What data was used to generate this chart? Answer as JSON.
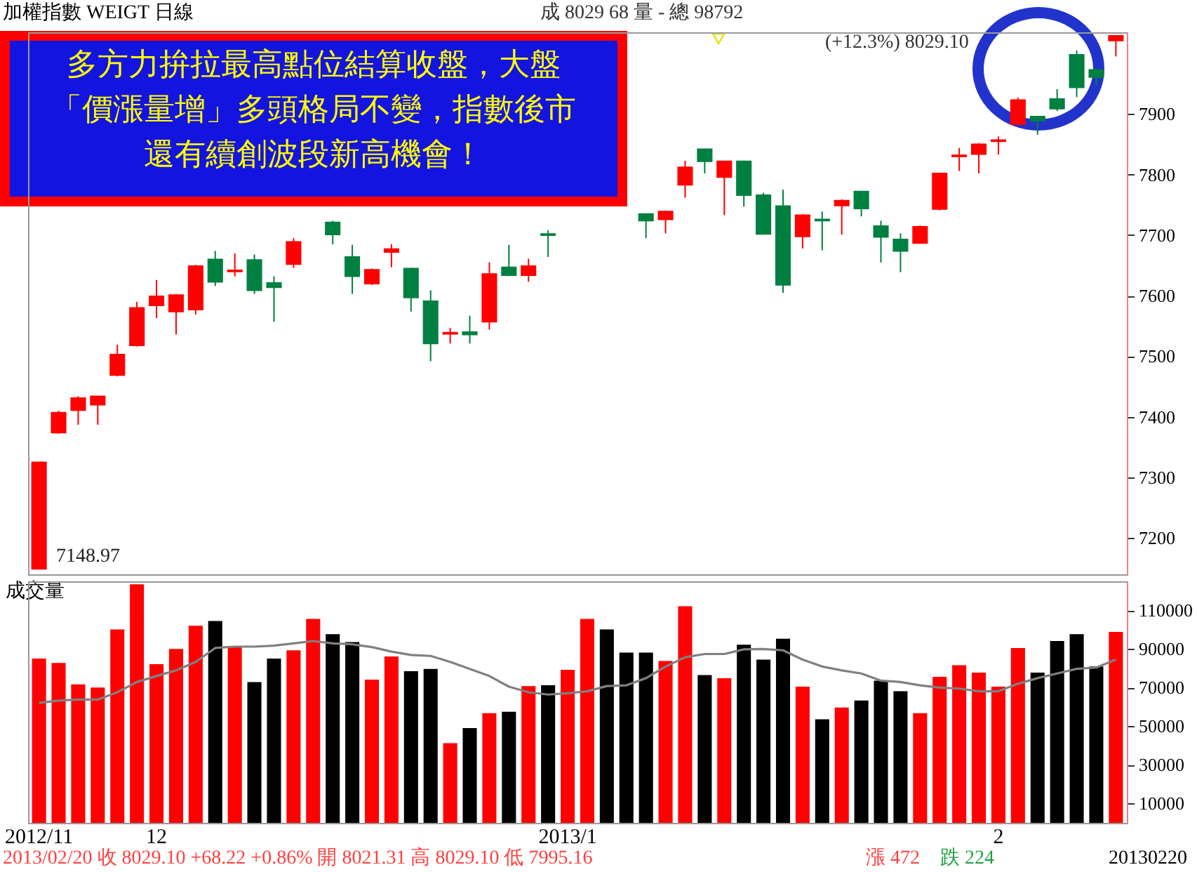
{
  "chart_data": [
    {
      "type": "candlestick",
      "title": "加權指數 WEIGT 日線",
      "annotations": [
        "成 8029 68 量 - 總 98792",
        "(+12.3%) 8029.10",
        "多方力拚拉最高點位結算收盤，大盤",
        "「價漲量增」多頭格局不變，指數後市",
        "還有續創波段新高機會！",
        "7148.97"
      ],
      "categories": [
        "2012/11",
        null,
        null,
        null,
        null,
        null,
        "12",
        null,
        null,
        null,
        null,
        null,
        null,
        null,
        null,
        null,
        null,
        null,
        null,
        null,
        null,
        null,
        null,
        null,
        null,
        null,
        null,
        "2013/1",
        null,
        null,
        null,
        null,
        null,
        null,
        null,
        null,
        null,
        null,
        null,
        null,
        null,
        null,
        null,
        null,
        null,
        null,
        null,
        null,
        null,
        "2",
        null,
        null,
        null,
        null,
        null,
        null
      ],
      "ohlc": [
        [
          7149,
          7325,
          7148.97,
          7325
        ],
        [
          7374,
          7410,
          7372,
          7407
        ],
        [
          7411,
          7434,
          7387,
          7431
        ],
        [
          7420,
          7434,
          7387,
          7434
        ],
        [
          7469,
          7519,
          7467,
          7503
        ],
        [
          7518,
          7590,
          7516,
          7580
        ],
        [
          7584,
          7626,
          7563,
          7599
        ],
        [
          7574,
          7603,
          7536,
          7601
        ],
        [
          7577,
          7651,
          7569,
          7649
        ],
        [
          7660,
          7674,
          7616,
          7623
        ],
        [
          7640,
          7670,
          7632,
          7642
        ],
        [
          7659,
          7668,
          7603,
          7609
        ],
        [
          7621,
          7632,
          7557,
          7614
        ],
        [
          7652,
          7695,
          7646,
          7689
        ],
        null,
        [
          7721,
          7724,
          7685,
          7701
        ],
        [
          7664,
          7684,
          7603,
          7632
        ],
        [
          7620,
          7645,
          7618,
          7643
        ],
        [
          7672,
          7685,
          7647,
          7677
        ],
        [
          7645,
          7646,
          7574,
          7597
        ],
        [
          7591,
          7609,
          7492,
          7521
        ],
        [
          7537,
          7547,
          7521,
          7539
        ],
        [
          7540,
          7567,
          7521,
          7536
        ],
        [
          7557,
          7655,
          7544,
          7636
        ],
        [
          7647,
          7684,
          7633,
          7634
        ],
        [
          7634,
          7661,
          7623,
          7649
        ],
        [
          7702,
          7708,
          7664,
          7700
        ],
        null,
        null,
        null,
        null,
        [
          7735,
          7735,
          7695,
          7724
        ],
        [
          7726,
          7739,
          7703,
          7739
        ],
        [
          7783,
          7823,
          7762,
          7812
        ],
        [
          7842,
          7843,
          7802,
          7822
        ],
        [
          7796,
          7822,
          7733,
          7822
        ],
        [
          7822,
          7823,
          7747,
          7766
        ],
        [
          7766,
          7770,
          7702,
          7702
        ],
        [
          7748,
          7775,
          7605,
          7618
        ],
        [
          7698,
          7735,
          7678,
          7733
        ],
        [
          7726,
          7739,
          7675,
          7724
        ],
        [
          7749,
          7759,
          7701,
          7757
        ],
        [
          7772,
          7773,
          7731,
          7744
        ],
        [
          7715,
          7724,
          7655,
          7697
        ],
        [
          7693,
          7703,
          7639,
          7674
        ],
        [
          7687,
          7716,
          7686,
          7714
        ],
        [
          7743,
          7802,
          7741,
          7802
        ],
        [
          7830,
          7844,
          7806,
          7832
        ],
        [
          7834,
          7852,
          7802,
          7850
        ],
        [
          7855,
          7863,
          7833,
          7857
        ],
        [
          7883,
          7927,
          7882,
          7923
        ],
        [
          7896,
          7897,
          7866,
          7889
        ],
        [
          7925,
          7941,
          7905,
          7909
        ],
        [
          7998,
          8005,
          7928,
          7944
        ],
        [
          7973,
          7974,
          7948,
          7961
        ],
        [
          8021.31,
          8029.1,
          7995.16,
          8029.1
        ]
      ],
      "colors": [
        "#ff0000",
        "#ff0000",
        "#ff0000",
        "#ff0000",
        "#ff0000",
        "#ff0000",
        "#ff0000",
        "#ff0000",
        "#ff0000",
        "#008040",
        "#ff0000",
        "#008040",
        "#008040",
        "#ff0000",
        null,
        "#008040",
        "#008040",
        "#ff0000",
        "#ff0000",
        "#008040",
        "#008040",
        "#ff0000",
        "#008040",
        "#ff0000",
        "#008040",
        "#ff0000",
        "#008040",
        null,
        null,
        null,
        null,
        "#008040",
        "#ff0000",
        "#ff0000",
        "#008040",
        "#ff0000",
        "#008040",
        "#008040",
        "#008040",
        "#ff0000",
        "#008040",
        "#ff0000",
        "#008040",
        "#008040",
        "#008040",
        "#ff0000",
        "#ff0000",
        "#ff0000",
        "#ff0000",
        "#ff0000",
        "#ff0000",
        "#008040",
        "#008040",
        "#008040",
        "#008040",
        "#ff0000"
      ],
      "ylim": [
        7140,
        8035
      ],
      "yticks": [
        7200,
        7300,
        7400,
        7500,
        7600,
        7700,
        7800,
        7900
      ],
      "tick_labels": "y"
    },
    {
      "type": "bar",
      "title": "成交量",
      "annotations": [
        "2013/02/20 收 8029.10 +68.22 +0.86% 開 8021.31 高 8029.10 低 7995.16",
        "漲 472",
        "跌 224",
        "20130220"
      ],
      "categories": [
        "2012/11",
        null,
        null,
        null,
        null,
        null,
        "12",
        null,
        null,
        null,
        null,
        null,
        null,
        null,
        null,
        null,
        null,
        null,
        null,
        null,
        null,
        null,
        null,
        null,
        null,
        null,
        null,
        "2013/1",
        null,
        null,
        null,
        null,
        null,
        null,
        null,
        null,
        null,
        null,
        null,
        null,
        null,
        null,
        null,
        null,
        null,
        null,
        null,
        null,
        null,
        "2",
        null,
        null,
        null,
        null,
        null,
        null
      ],
      "series": [
        {
          "type": "bar",
          "colors": [
            "#ff0000",
            "#ff0000",
            "#ff0000",
            "#ff0000",
            "#ff0000",
            "#ff0000",
            "#ff0000",
            "#ff0000",
            "#ff0000",
            "#000000",
            "#ff0000",
            "#000000",
            "#000000",
            "#ff0000",
            "#ff0000",
            "#000000",
            "#000000",
            "#ff0000",
            "#ff0000",
            "#000000",
            "#000000",
            "#ff0000",
            "#000000",
            "#ff0000",
            "#000000",
            "#ff0000",
            "#000000",
            "#ff0000",
            "#ff0000",
            "#000000",
            "#000000",
            "#000000",
            "#ff0000",
            "#ff0000",
            "#000000",
            "#ff0000",
            "#000000",
            "#000000",
            "#000000",
            "#ff0000",
            "#000000",
            "#ff0000",
            "#000000",
            "#000000",
            "#000000",
            "#ff0000",
            "#ff0000",
            "#ff0000",
            "#ff0000",
            "#ff0000",
            "#ff0000",
            "#000000",
            "#000000",
            "#000000",
            "#000000",
            "#ff0000"
          ],
          "values": [
            85000,
            82800,
            71700,
            70000,
            100100,
            123500,
            82100,
            90000,
            102000,
            104500,
            91000,
            72900,
            85000,
            89300,
            105600,
            97700,
            93600,
            74100,
            86100,
            78500,
            79700,
            41200,
            49100,
            56800,
            57500,
            70800,
            71200,
            79200,
            105600,
            100100,
            88100,
            88100,
            83800,
            112100,
            76500,
            74900,
            92200,
            84500,
            95300,
            70500,
            53600,
            59700,
            63300,
            73600,
            68100,
            56800,
            75600,
            81600,
            77800,
            70500,
            90500,
            77800,
            94100,
            97700,
            80900,
            98792
          ]
        },
        {
          "type": "line",
          "color": "#808080",
          "values": [
            62100,
            63300,
            63800,
            63800,
            67600,
            72900,
            76000,
            78900,
            83300,
            90500,
            91200,
            91200,
            91700,
            92900,
            94100,
            92900,
            92400,
            91000,
            88600,
            86900,
            86400,
            83300,
            79700,
            76000,
            70500,
            67600,
            66400,
            67100,
            68100,
            70800,
            71200,
            74900,
            80900,
            85700,
            87400,
            87400,
            89800,
            90000,
            89300,
            84500,
            80900,
            78900,
            77300,
            73600,
            72900,
            71200,
            70000,
            69500,
            68100,
            68100,
            72000,
            74900,
            77300,
            79700,
            80400,
            84500
          ]
        }
      ],
      "marker": "none",
      "ylim": [
        0,
        125000
      ],
      "yticks": [
        10000,
        30000,
        50000,
        70000,
        90000,
        110000
      ]
    }
  ]
}
